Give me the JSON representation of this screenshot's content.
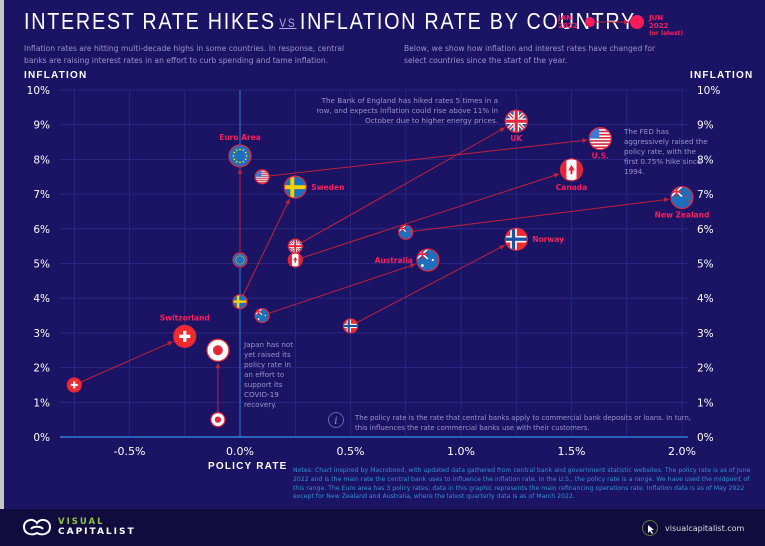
{
  "header": {
    "title_part1": "INTEREST RATE HIKES",
    "title_vs": "VS",
    "title_part2": "INFLATION RATE BY COUNTRY",
    "subtitle_left": "Inflation rates are hitting multi-decade highs in some countries. In response, central banks are raising interest rates in an effort to curb spending and tame inflation.",
    "subtitle_right": "Below, we show how inflation and interest rates have changed for select countries since the start of the year.",
    "legend_start": "JAN 2022",
    "legend_end": "JUN 2022",
    "legend_end_note": "(or latest)"
  },
  "colors": {
    "background": "#1b1464",
    "accent": "#ff1a5b",
    "arrow": "#c0213a",
    "grid": "#2a2a8a",
    "axis": "#2f7fd6"
  },
  "annotations": {
    "uk": "The Bank of England has hiked rates 5 times in a row, and expects inflation could rise above 11% in October due to higher energy prices.",
    "us": "The FED has aggressively raised the policy rate, with the first 0.75% hike since 1994.",
    "japan": "Japan has not yet raised its policy rate in an effort to support its COVID-19 recovery.",
    "info": "The policy rate is the rate that central banks apply to commercial bank deposits or loans. In turn, this influences the rate commercial banks use with their customers."
  },
  "notes": "Notes: Chart inspired by Macrobond, with updated data gathered from central bank and government statistic websites. The policy rate is as of June 2022 and is the main rate the central bank uses to influence the inflation rate. In the U.S., the policy rate is a range. We have used the midpoint of this range. The Euro area has 3 policy rates; data in this graphic represents the main refinancing operations rate. Inflation data is as of May 2022 except for New Zealand and Australia, where the latest quarterly data is as of March 2022.",
  "footer": {
    "brand_line1": "VISUAL",
    "brand_line2": "CAPITALIST",
    "url": "visualcapitalist.com"
  },
  "chart_data": {
    "type": "scatter",
    "title": "Interest Rate Hikes vs Inflation Rate by Country",
    "xlabel": "POLICY RATE",
    "ylabel_left": "INFLATION",
    "ylabel_right": "INFLATION",
    "xlim": [
      -0.8,
      2.2
    ],
    "ylim": [
      0,
      10
    ],
    "x_ticks": [
      -0.5,
      0.0,
      0.5,
      1.0,
      1.5,
      2.0
    ],
    "x_tick_labels": [
      "-0.5%",
      "0.0%",
      "0.5%",
      "1.0%",
      "1.5%",
      "2.0%"
    ],
    "y_ticks": [
      0,
      1,
      2,
      3,
      4,
      5,
      6,
      7,
      8,
      9,
      10
    ],
    "y_tick_labels": [
      "0%",
      "1%",
      "2%",
      "3%",
      "4%",
      "5%",
      "6%",
      "7%",
      "8%",
      "9%",
      "10%"
    ],
    "grid": true,
    "series_description": "Each country moves from Jan 2022 (small marker) to Jun 2022 or latest (large marker)",
    "countries": [
      {
        "name": "Euro Area",
        "flag": "eu",
        "jan": {
          "policy": 0.0,
          "inflation": 5.1
        },
        "jun": {
          "policy": 0.0,
          "inflation": 8.1
        },
        "label_pos": "top"
      },
      {
        "name": "U.S.",
        "flag": "us",
        "jan": {
          "policy": 0.1,
          "inflation": 7.5
        },
        "jun": {
          "policy": 1.63,
          "inflation": 8.6
        },
        "label_pos": "bottom"
      },
      {
        "name": "Sweden",
        "flag": "se",
        "jan": {
          "policy": 0.0,
          "inflation": 3.9
        },
        "jun": {
          "policy": 0.25,
          "inflation": 7.2
        },
        "label_pos": "right"
      },
      {
        "name": "UK",
        "flag": "uk",
        "jan": {
          "policy": 0.25,
          "inflation": 5.5
        },
        "jun": {
          "policy": 1.25,
          "inflation": 9.1
        },
        "label_pos": "bottom"
      },
      {
        "name": "Canada",
        "flag": "ca",
        "jan": {
          "policy": 0.25,
          "inflation": 5.1
        },
        "jun": {
          "policy": 1.5,
          "inflation": 7.7
        },
        "label_pos": "bottom"
      },
      {
        "name": "New Zealand",
        "flag": "nz",
        "jan": {
          "policy": 0.75,
          "inflation": 5.9
        },
        "jun": {
          "policy": 2.0,
          "inflation": 6.9
        },
        "label_pos": "bottom"
      },
      {
        "name": "Australia",
        "flag": "au",
        "jan": {
          "policy": 0.1,
          "inflation": 3.5
        },
        "jun": {
          "policy": 0.85,
          "inflation": 5.1
        },
        "label_pos": "left"
      },
      {
        "name": "Norway",
        "flag": "no",
        "jan": {
          "policy": 0.5,
          "inflation": 3.2
        },
        "jun": {
          "policy": 1.25,
          "inflation": 5.7
        },
        "label_pos": "right"
      },
      {
        "name": "Switzerland",
        "flag": "ch",
        "jan": {
          "policy": -0.75,
          "inflation": 1.5
        },
        "jun": {
          "policy": -0.25,
          "inflation": 2.9
        },
        "label_pos": "top"
      },
      {
        "name": "Japan",
        "flag": "jp",
        "jan": {
          "policy": -0.1,
          "inflation": 0.5
        },
        "jun": {
          "policy": -0.1,
          "inflation": 2.5
        },
        "label_pos": "none"
      }
    ]
  }
}
